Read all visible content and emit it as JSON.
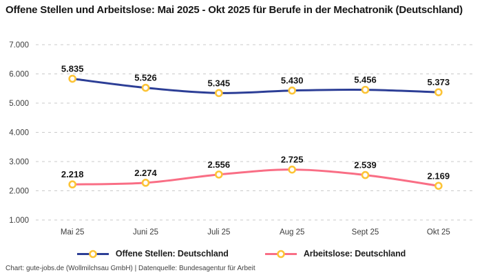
{
  "title": "Offene Stellen und Arbeitslose: Mai 2025 - Okt 2025 für Berufe in der Mechatronik (Deutschland)",
  "footer": "Chart: gute-jobs.de (Wollmilchsau GmbH) | Datenquelle: Bundesagentur für Arbeit",
  "chart_data": {
    "type": "line",
    "categories": [
      "Mai 25",
      "Juni 25",
      "Juli 25",
      "Aug 25",
      "Sept 25",
      "Okt 25"
    ],
    "series": [
      {
        "name": "Offene Stellen: Deutschland",
        "color": "#2c3e96",
        "values": [
          5835,
          5526,
          5345,
          5430,
          5456,
          5373
        ],
        "labels": [
          "5.835",
          "5.526",
          "5.345",
          "5.430",
          "5.456",
          "5.373"
        ]
      },
      {
        "name": "Arbeitslose: Deutschland",
        "color": "#f96e85",
        "values": [
          2218,
          2274,
          2556,
          2725,
          2539,
          2169
        ],
        "labels": [
          "2.218",
          "2.274",
          "2.556",
          "2.725",
          "2.539",
          "2.169"
        ]
      }
    ],
    "marker_color": "#fcc437",
    "grid_color": "#c9c9c9",
    "grid": true,
    "ylim": [
      1000,
      7000
    ],
    "ytick_step": 1000,
    "ytick_labels": [
      "1.000",
      "2.000",
      "3.000",
      "4.000",
      "5.000",
      "6.000",
      "7.000"
    ],
    "legend_position": "bottom"
  }
}
